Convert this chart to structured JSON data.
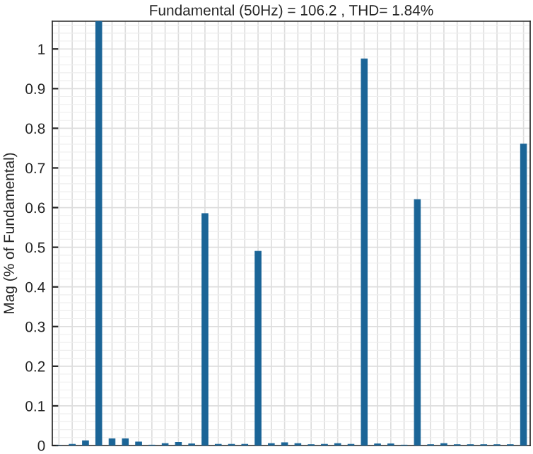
{
  "chart_data": {
    "type": "bar",
    "title": "Fundamental (50Hz) = 106.2 , THD= 1.84%",
    "ylabel": "Mag (% of Fundamental)",
    "categories": [
      null,
      null,
      null,
      null,
      null,
      null,
      null,
      null,
      null,
      null,
      null,
      null,
      null,
      null,
      null,
      null,
      null,
      null,
      null,
      null,
      null,
      null,
      null,
      null,
      null,
      null,
      null,
      null,
      null,
      null,
      null,
      null,
      null,
      null,
      null,
      null
    ],
    "values": [
      0,
      0.003,
      0.012,
      1.07,
      0.017,
      0.017,
      0.009,
      0.001,
      0.005,
      0.008,
      0.004,
      0.585,
      0.003,
      0.003,
      0.003,
      0.49,
      0.005,
      0.007,
      0.005,
      0.002,
      0.003,
      0.005,
      0.003,
      0.975,
      0.004,
      0.004,
      0.001,
      0.62,
      0.002,
      0.005,
      0.002,
      0.002,
      0.002,
      0.002,
      0.002,
      0.76
    ],
    "color": "#1b6597",
    "ylim": [
      0,
      1.07
    ],
    "yticks": [
      0,
      0.1,
      0.2,
      0.3,
      0.4,
      0.5,
      0.6,
      0.7,
      0.8,
      0.9,
      1
    ],
    "grid": true,
    "tick_labels": "y"
  }
}
